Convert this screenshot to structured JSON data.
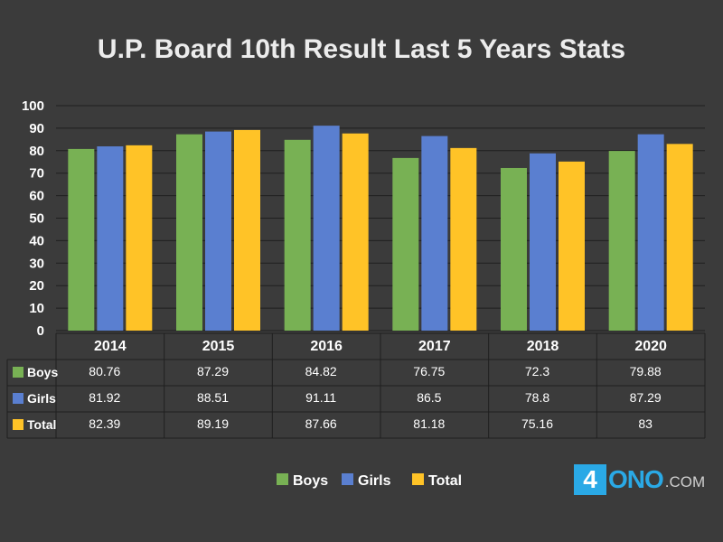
{
  "colors": {
    "background": "#3b3b3b",
    "Boys": "#78b154",
    "Girls": "#5a7fd0",
    "Total": "#ffc327",
    "grid": "#1f1f1f"
  },
  "chart_data": {
    "type": "bar",
    "title": "U.P. Board 10th Result Last 5 Years Stats",
    "categories": [
      "2014",
      "2015",
      "2016",
      "2017",
      "2018",
      "2020"
    ],
    "series": [
      {
        "name": "Boys",
        "values": [
          80.76,
          87.29,
          84.82,
          76.75,
          72.3,
          79.88
        ]
      },
      {
        "name": "Girls",
        "values": [
          81.92,
          88.51,
          91.11,
          86.5,
          78.8,
          87.29
        ]
      },
      {
        "name": "Total",
        "values": [
          82.39,
          89.19,
          87.66,
          81.18,
          75.16,
          83
        ]
      }
    ],
    "yticks": [
      "0",
      "10",
      "20",
      "30",
      "40",
      "50",
      "60",
      "70",
      "80",
      "90",
      "100"
    ],
    "ylim": [
      0,
      100
    ],
    "grid": true,
    "legend": "bottom",
    "data_table": true
  },
  "logo": {
    "prefix": "4",
    "rest": "ONO",
    "suffix": ".COM"
  }
}
